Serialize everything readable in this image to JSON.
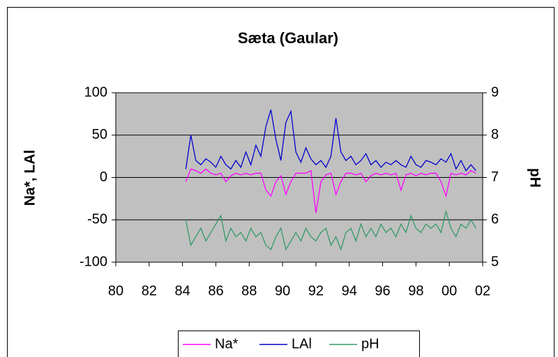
{
  "chart_data": {
    "type": "line",
    "title": "Sæta (Gaular)",
    "y_label": "Na*, LAl",
    "y2_label": "pH",
    "x": [
      84.2,
      84.5,
      84.8,
      85.1,
      85.4,
      85.7,
      86.0,
      86.3,
      86.6,
      86.9,
      87.2,
      87.5,
      87.8,
      88.1,
      88.4,
      88.7,
      89.0,
      89.3,
      89.6,
      89.9,
      90.2,
      90.5,
      90.8,
      91.1,
      91.4,
      91.7,
      92.0,
      92.3,
      92.6,
      92.9,
      93.2,
      93.5,
      93.8,
      94.1,
      94.4,
      94.7,
      95.0,
      95.3,
      95.6,
      95.9,
      96.2,
      96.5,
      96.8,
      97.1,
      97.4,
      97.7,
      98.0,
      98.3,
      98.6,
      98.9,
      99.2,
      99.5,
      99.8,
      100.1,
      100.4,
      100.7,
      101.0,
      101.3,
      101.6
    ],
    "series": [
      {
        "name": "Na*",
        "color": "#ff00ff",
        "values": [
          -5,
          10,
          8,
          5,
          10,
          5,
          3,
          5,
          -5,
          2,
          5,
          3,
          5,
          3,
          5,
          5,
          -15,
          -22,
          -5,
          2,
          -20,
          -5,
          5,
          5,
          5,
          8,
          -42,
          -5,
          3,
          5,
          -20,
          -5,
          5,
          5,
          3,
          5,
          -5,
          2,
          5,
          3,
          5,
          3,
          5,
          -15,
          3,
          5,
          2,
          5,
          3,
          5,
          5,
          -5,
          -22,
          5,
          3,
          5,
          3,
          8,
          5
        ]
      },
      {
        "name": "LAl",
        "color": "#0000cc",
        "values": [
          10,
          50,
          20,
          15,
          22,
          18,
          12,
          25,
          15,
          10,
          20,
          12,
          30,
          15,
          38,
          25,
          60,
          80,
          45,
          20,
          65,
          78,
          30,
          18,
          35,
          22,
          15,
          20,
          12,
          25,
          70,
          30,
          20,
          25,
          15,
          20,
          28,
          15,
          20,
          12,
          18,
          15,
          20,
          15,
          12,
          25,
          15,
          12,
          20,
          18,
          15,
          22,
          18,
          28,
          10,
          20,
          8,
          15,
          8
        ]
      },
      {
        "name": "pH",
        "color": "#339966",
        "axis": "y2",
        "values": [
          6.0,
          5.4,
          5.6,
          5.8,
          5.5,
          5.7,
          5.9,
          6.1,
          5.5,
          5.8,
          5.6,
          5.7,
          5.5,
          5.8,
          5.6,
          5.7,
          5.4,
          5.3,
          5.6,
          5.8,
          5.3,
          5.5,
          5.7,
          5.5,
          5.8,
          5.6,
          5.5,
          5.7,
          5.8,
          5.4,
          5.6,
          5.3,
          5.7,
          5.8,
          5.5,
          5.9,
          5.6,
          5.8,
          5.6,
          5.9,
          5.7,
          5.8,
          5.6,
          5.9,
          5.7,
          6.1,
          5.8,
          5.7,
          5.9,
          5.8,
          5.9,
          5.7,
          6.2,
          5.8,
          5.6,
          5.9,
          5.8,
          6.0,
          5.8
        ]
      }
    ],
    "xlim": [
      80,
      102
    ],
    "xticks": [
      80,
      82,
      84,
      86,
      88,
      90,
      92,
      94,
      96,
      98,
      {
        "value": 100,
        "label": "00"
      },
      {
        "value": 102,
        "label": "02"
      }
    ],
    "ylim": [
      -100,
      100
    ],
    "yticks": [
      -100,
      -50,
      0,
      50,
      100
    ],
    "y2lim": [
      5,
      9
    ],
    "y2ticks": [
      5,
      6,
      7,
      8,
      9
    ],
    "grid": true,
    "plot_background": "#c0c0c0",
    "legend": "bottom"
  }
}
